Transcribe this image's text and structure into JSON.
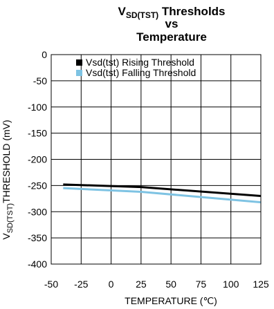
{
  "chart_data": {
    "type": "line",
    "title": {
      "line1_main": "V",
      "line1_sub": "SD(TST)",
      "line1_rest": " Thresholds",
      "line2": "vs",
      "line3": "Temperature"
    },
    "xlabel": "TEMPERATURE (℃)",
    "ylabel": {
      "main": "V",
      "sub": "SD(TST)",
      "rest": "THRESHOLD (mV)"
    },
    "xlim": [
      -50,
      125
    ],
    "ylim": [
      -400,
      0
    ],
    "x_ticks": [
      -50,
      -25,
      0,
      25,
      50,
      75,
      100,
      125
    ],
    "y_ticks": [
      0,
      -50,
      -100,
      -150,
      -200,
      -250,
      -300,
      -350,
      -400
    ],
    "grid": true,
    "legend_position": "top-left",
    "series": [
      {
        "name": "Vsd(tst) Rising Threshold",
        "color": "#000000",
        "x": [
          -40,
          25,
          125
        ],
        "y": [
          -248,
          -253,
          -270
        ]
      },
      {
        "name": "Vsd(tst) Falling Threshold",
        "color": "#7ec3e3",
        "x": [
          -40,
          25,
          125
        ],
        "y": [
          -255,
          -262,
          -282
        ]
      }
    ]
  }
}
